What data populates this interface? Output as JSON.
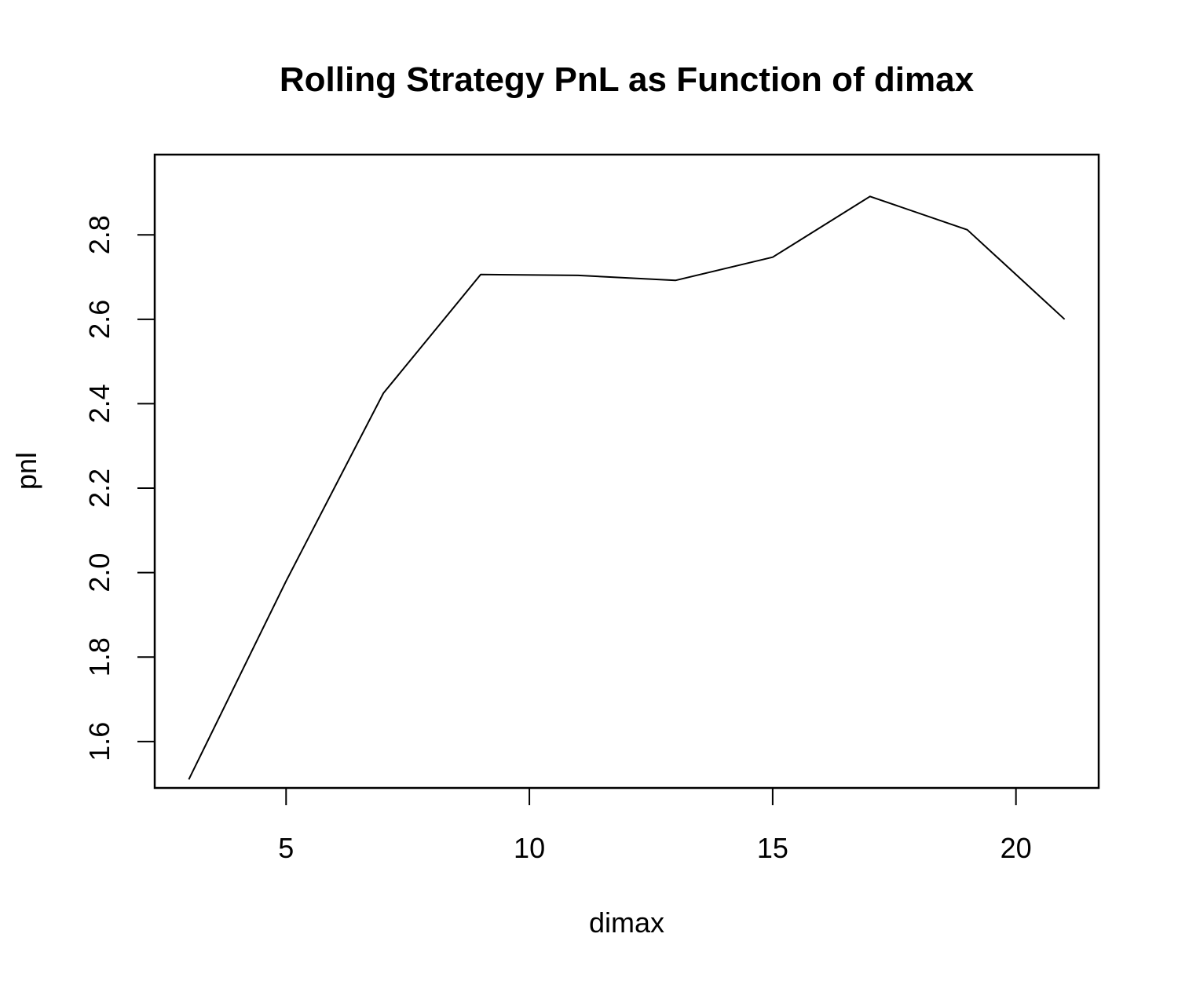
{
  "chart_data": {
    "type": "line",
    "title": "Rolling Strategy PnL as Function of dimax",
    "xlabel": "dimax",
    "ylabel": "pnl",
    "xlim": [
      2.3,
      21.7
    ],
    "ylim": [
      1.49,
      2.99
    ],
    "x_ticks": [
      5,
      10,
      15,
      20
    ],
    "y_ticks": [
      1.6,
      1.8,
      2.0,
      2.2,
      2.4,
      2.6,
      2.8
    ],
    "x_tick_labels": [
      "5",
      "10",
      "15",
      "20"
    ],
    "y_tick_labels": [
      "1.6",
      "1.8",
      "2.0",
      "2.2",
      "2.4",
      "2.6",
      "2.8"
    ],
    "grid": false,
    "series": [
      {
        "x": [
          3,
          5,
          7,
          9,
          11,
          13,
          15,
          17,
          19,
          21
        ],
        "values": [
          1.51,
          1.98,
          2.425,
          2.706,
          2.704,
          2.692,
          2.747,
          2.891,
          2.812,
          2.6
        ]
      }
    ]
  }
}
